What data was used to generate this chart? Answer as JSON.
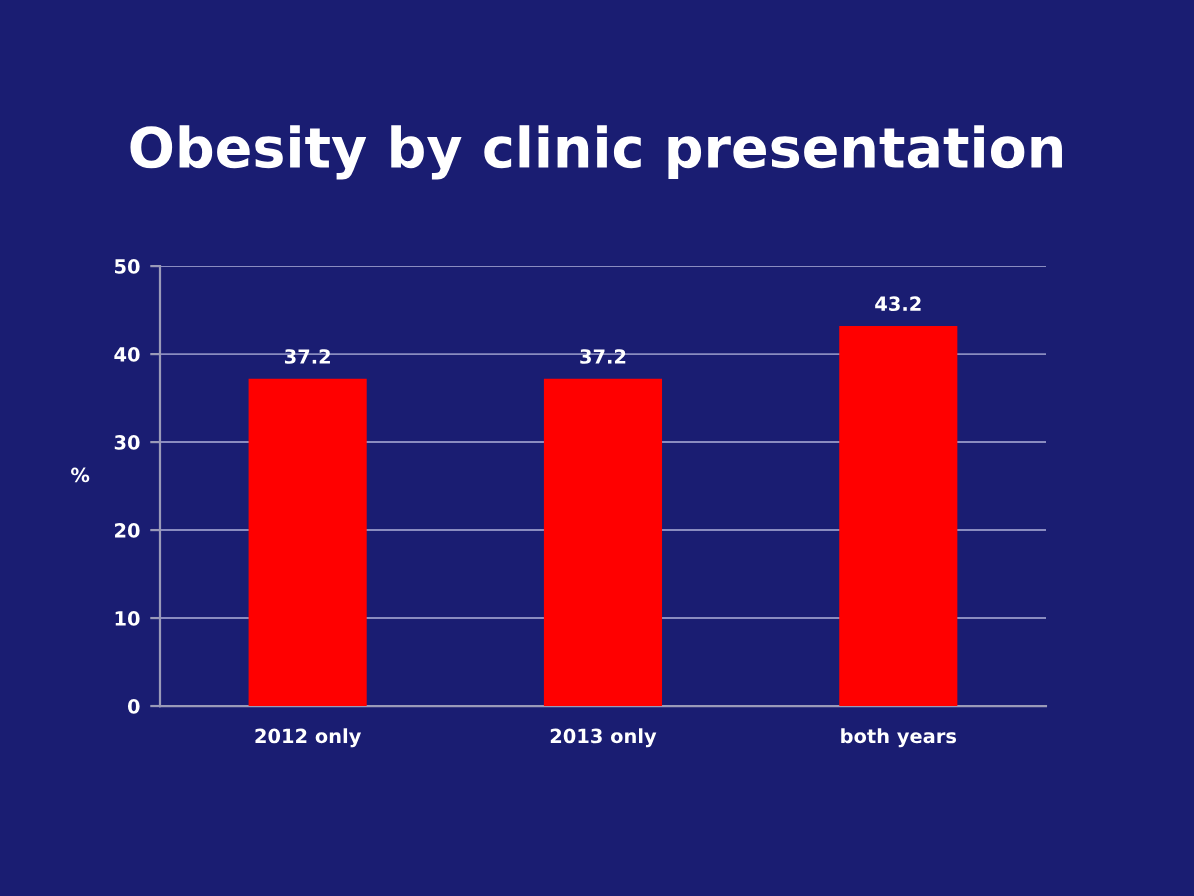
{
  "chart_data": {
    "type": "bar",
    "title": "Obesity by clinic presentation",
    "ylabel": "%",
    "categories": [
      "2012 only",
      "2013 only",
      "both years"
    ],
    "values": [
      37.2,
      37.2,
      43.2
    ],
    "color": "#ff0000",
    "ylim": [
      0,
      50
    ],
    "yticks": [
      0,
      10,
      20,
      30,
      40,
      50
    ],
    "grid": "y",
    "data_labels": true
  }
}
